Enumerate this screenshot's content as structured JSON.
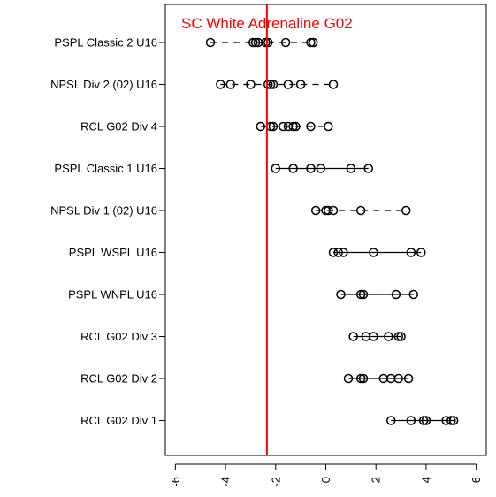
{
  "chart_data": {
    "type": "scatter",
    "title": "",
    "xlabel": "",
    "ylabel": "",
    "xlim": [
      -6.4,
      6.4
    ],
    "x_ticks": [
      -6,
      -4,
      -2,
      0,
      2,
      4,
      6
    ],
    "x_tick_labels": [
      "-6",
      "-4",
      "-2",
      "0",
      "2",
      "4",
      "6"
    ],
    "grid": false,
    "reference_line": {
      "x": -2.35,
      "label": "SC White Adrenaline G02",
      "color": "#ff0000"
    },
    "point_style": "open-circle",
    "categories": [
      "PSPL Classic 2 U16",
      "NPSL Div 2 (02) U16",
      "RCL G02 Div 4",
      "PSPL Classic 1 U16",
      "NPSL Div 1 (02) U16",
      "PSPL WSPL U16",
      "PSPL WNPL U16",
      "RCL G02 Div 3",
      "RCL G02 Div 2",
      "RCL G02 Div 1"
    ],
    "series": [
      {
        "category": "PSPL Classic 2 U16",
        "values": [
          -4.6,
          -2.9,
          -2.8,
          -2.7,
          -2.4,
          -2.3,
          -1.6,
          -0.6,
          -0.5
        ],
        "interval": [
          -4.6,
          -0.5
        ],
        "line_style": "dashed"
      },
      {
        "category": "NPSL Div 2 (02) U16",
        "values": [
          -4.2,
          -3.8,
          -3.0,
          -2.3,
          -2.2,
          -2.1,
          -1.5,
          -1.0,
          0.3
        ],
        "interval": [
          -4.2,
          0.3
        ],
        "line_style": "dashed"
      },
      {
        "category": "RCL G02 Div 4",
        "values": [
          -2.6,
          -2.2,
          -2.1,
          -1.7,
          -1.5,
          -1.3,
          -1.2,
          -0.6,
          0.1
        ],
        "interval": [
          -2.6,
          0.1
        ],
        "line_style": "dashed"
      },
      {
        "category": "PSPL Classic 1 U16",
        "values": [
          -2.0,
          -1.3,
          -0.6,
          -0.2,
          1.0,
          1.7
        ],
        "interval": [
          -2.0,
          1.7
        ],
        "line_style": "solid"
      },
      {
        "category": "NPSL Div 1 (02) U16",
        "values": [
          -0.4,
          0.0,
          0.1,
          0.3,
          1.4,
          3.2
        ],
        "interval": [
          -0.4,
          3.2
        ],
        "line_style": "dashed"
      },
      {
        "category": "PSPL WSPL U16",
        "values": [
          0.3,
          0.5,
          0.7,
          1.9,
          3.4,
          3.8
        ],
        "interval": [
          0.3,
          3.8
        ],
        "line_style": "solid"
      },
      {
        "category": "PSPL WNPL U16",
        "values": [
          0.6,
          1.4,
          1.5,
          2.8,
          3.5
        ],
        "interval": [
          0.6,
          3.5
        ],
        "line_style": "solid"
      },
      {
        "category": "RCL G02 Div 3",
        "values": [
          1.1,
          1.6,
          1.9,
          2.5,
          2.9,
          3.0
        ],
        "interval": [
          1.1,
          3.0
        ],
        "line_style": "solid"
      },
      {
        "category": "RCL G02 Div 2",
        "values": [
          0.9,
          1.4,
          1.5,
          2.3,
          2.6,
          2.9,
          3.3
        ],
        "interval": [
          0.9,
          3.3
        ],
        "line_style": "solid"
      },
      {
        "category": "RCL G02 Div 1",
        "values": [
          2.6,
          3.4,
          3.9,
          4.0,
          4.8,
          5.0,
          5.1
        ],
        "interval": [
          2.6,
          5.1
        ],
        "line_style": "solid"
      }
    ]
  }
}
